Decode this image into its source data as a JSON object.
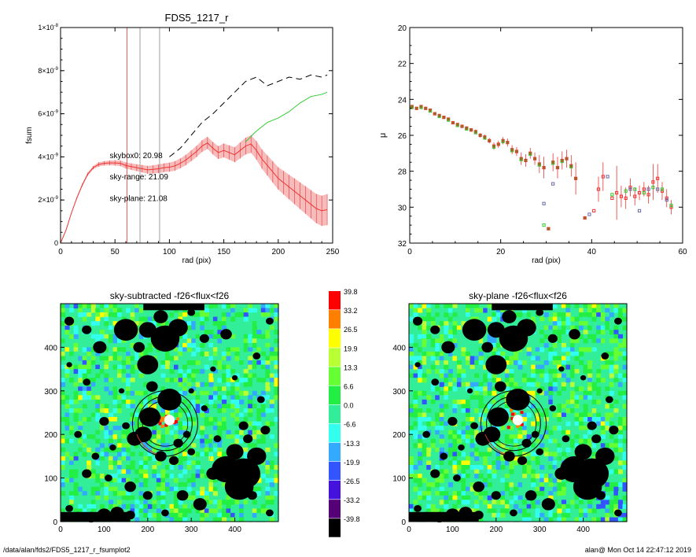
{
  "colors": {
    "red": "#ee3333",
    "green": "#33cc33",
    "black": "#000000",
    "gray": "#888888",
    "band": "#f5b5b5"
  },
  "footer": {
    "path": "/data/alan/fds2/FDS5_1217_r_fsumplot2",
    "user": "alan@  Mon Oct 14 22:47:12 2019"
  },
  "chart_data": [
    {
      "type": "line",
      "title": "FDS5_1217_r",
      "xlabel": "rad (pix)",
      "ylabel": "fsum",
      "xlim": [
        0,
        250
      ],
      "ylim": [
        0,
        1e-08
      ],
      "x_ticks": [
        0,
        50,
        100,
        150,
        200,
        250
      ],
      "x_tick_labels": [
        "0",
        "50",
        "100",
        "150",
        "200",
        "250"
      ],
      "y_ticks": [
        0,
        2e-09,
        4e-09,
        6e-09,
        8e-09,
        1e-08
      ],
      "y_tick_labels": [
        [
          "0",
          ""
        ],
        [
          "2×10",
          "-9"
        ],
        [
          "4×10",
          "-9"
        ],
        [
          "6×10",
          "-9"
        ],
        [
          "8×10",
          "-9"
        ],
        [
          "1×10",
          "-8"
        ]
      ],
      "vlines": [
        {
          "x": 61,
          "color": "red"
        },
        {
          "x": 73,
          "color": "gray"
        },
        {
          "x": 91,
          "color": "gray"
        }
      ],
      "annotations": [
        {
          "text": "skybox0: 20.98",
          "color": "black",
          "x": 35,
          "y": 3.95e-09
        },
        {
          "text": "sky-range: 21.09",
          "color": "red",
          "x": 35,
          "y": 2.95e-09
        },
        {
          "text": "sky-plane: 21.08",
          "color": "green",
          "x": 35,
          "y": 1.95e-09
        }
      ],
      "series": [
        {
          "style": "dashed",
          "color": "black",
          "x": [
            100,
            110,
            120,
            130,
            140,
            150,
            160,
            170,
            180,
            190,
            200,
            210,
            220,
            230,
            240,
            245
          ],
          "y": [
            4e-09,
            4.4e-09,
            5e-09,
            5.6e-09,
            6e-09,
            6.5e-09,
            7e-09,
            7.5e-09,
            7.7e-09,
            7.3e-09,
            7.5e-09,
            7.7e-09,
            7.6e-09,
            7.8e-09,
            7.7e-09,
            7.8e-09
          ]
        },
        {
          "style": "solid",
          "color": "green",
          "x": [
            170,
            180,
            190,
            200,
            210,
            220,
            230,
            240,
            245
          ],
          "y": [
            4.7e-09,
            5.2e-09,
            5.6e-09,
            5.8e-09,
            6.1e-09,
            6.5e-09,
            6.8e-09,
            6.9e-09,
            7e-09
          ]
        },
        {
          "style": "solid",
          "color": "red",
          "x": [
            0,
            5,
            10,
            15,
            20,
            25,
            30,
            35,
            40,
            45,
            50,
            55,
            60,
            65,
            70,
            75,
            80,
            85,
            90,
            95,
            100,
            105,
            110,
            115,
            120,
            125,
            130,
            135,
            140,
            145,
            150,
            155,
            160,
            165,
            170,
            175,
            180,
            185,
            190,
            195,
            200,
            205,
            210,
            215,
            220,
            225,
            230,
            235,
            240,
            245
          ],
          "y": [
            0,
            6e-10,
            1.4e-09,
            2.1e-09,
            2.7e-09,
            3.2e-09,
            3.5e-09,
            3.65e-09,
            3.7e-09,
            3.72e-09,
            3.72e-09,
            3.7e-09,
            3.6e-09,
            3.55e-09,
            3.5e-09,
            3.45e-09,
            3.4e-09,
            3.42e-09,
            3.45e-09,
            3.5e-09,
            3.52e-09,
            3.58e-09,
            3.7e-09,
            3.85e-09,
            4.05e-09,
            4.25e-09,
            4.5e-09,
            4.65e-09,
            4.4e-09,
            4.2e-09,
            4.3e-09,
            4.2e-09,
            4.1e-09,
            4.3e-09,
            4.5e-09,
            4.6e-09,
            4.3e-09,
            3.9e-09,
            3.6e-09,
            3.3e-09,
            3e-09,
            2.8e-09,
            2.6e-09,
            2.4e-09,
            2.2e-09,
            2e-09,
            1.8e-09,
            1.6e-09,
            1.5e-09,
            1.55e-09
          ],
          "err": [
            0,
            2e-11,
            3e-11,
            5e-11,
            6e-11,
            7e-11,
            8e-11,
            1e-10,
            1e-10,
            1.1e-10,
            1.2e-10,
            1.3e-10,
            1.4e-10,
            1.5e-10,
            1.6e-10,
            1.7e-10,
            1.8e-10,
            1.9e-10,
            2e-10,
            2e-10,
            2.1e-10,
            2.2e-10,
            2.3e-10,
            2.4e-10,
            2.5e-10,
            2.6e-10,
            2.7e-10,
            2.8e-10,
            2.9e-10,
            3e-10,
            3.2e-10,
            3.3e-10,
            3.5e-10,
            3.7e-10,
            3.9e-10,
            4.1e-10,
            4.3e-10,
            4.5e-10,
            4.7e-10,
            5e-10,
            5.2e-10,
            5.5e-10,
            5.7e-10,
            6e-10,
            6.2e-10,
            6.4e-10,
            6.6e-10,
            6.8e-10,
            7e-10,
            7.2e-10
          ]
        }
      ]
    },
    {
      "type": "scatter",
      "title": "",
      "xlabel": "rad (pix)",
      "ylabel": "μ",
      "xlim": [
        0,
        60
      ],
      "ylim": [
        32,
        20
      ],
      "x_ticks": [
        0,
        20,
        40,
        60
      ],
      "y_ticks": [
        20,
        22,
        24,
        26,
        28,
        30,
        32
      ],
      "series": [
        {
          "color": "red",
          "x": [
            0.5,
            1.5,
            2.5,
            3.5,
            4.5,
            5.5,
            6.5,
            7.5,
            8.5,
            9.5,
            10.5,
            11.5,
            12.5,
            13.5,
            14.5,
            15.5,
            16.5,
            17.5,
            18.5,
            19.5,
            20.5,
            21.5,
            22.5,
            23.5,
            24.5,
            25.5,
            26.5,
            27.5,
            28.5,
            29.5,
            30.5,
            31.5,
            32.5,
            33.5,
            34.5,
            35.5,
            36.5,
            38.5,
            40.5,
            41.5,
            42.5,
            44.5,
            45.5,
            46.5,
            47.5,
            48.5,
            49.5,
            50.5,
            51.5,
            52.5,
            53.5,
            54.5,
            55.5,
            56.5,
            57.5
          ],
          "y": [
            24.4,
            24.5,
            24.4,
            24.5,
            24.6,
            24.8,
            24.9,
            25.0,
            25.1,
            25.3,
            25.4,
            25.5,
            25.6,
            25.7,
            25.8,
            26.0,
            26.1,
            26.3,
            26.6,
            26.5,
            26.3,
            26.4,
            26.8,
            26.9,
            27.3,
            27.4,
            27.0,
            27.3,
            27.6,
            27.8,
            31.2,
            27.5,
            27.8,
            27.4,
            27.3,
            27.7,
            28.4,
            30.6,
            30.2,
            29.0,
            28.3,
            29.5,
            29.2,
            29.4,
            29.5,
            28.9,
            29.4,
            29.2,
            29.0,
            29.3,
            28.6,
            28.4,
            29.1,
            29.5,
            30.0
          ],
          "err": [
            0.05,
            0.05,
            0.05,
            0.05,
            0.05,
            0.06,
            0.06,
            0.07,
            0.07,
            0.08,
            0.08,
            0.09,
            0.1,
            0.1,
            0.12,
            0.12,
            0.14,
            0.15,
            0.2,
            0.2,
            0.2,
            0.22,
            0.25,
            0.25,
            0.35,
            0.35,
            0.3,
            0.35,
            0.5,
            0.6,
            0,
            0.5,
            0.6,
            0.5,
            0.5,
            0.6,
            0.9,
            0,
            0,
            0.7,
            0.8,
            0,
            1.5,
            0.6,
            0.6,
            0.5,
            0.5,
            0.4,
            0.4,
            0.5,
            1.0,
            0.8,
            0.5,
            0.5,
            0.4
          ]
        },
        {
          "color": "green",
          "x": [
            0.5,
            2.5,
            4.5,
            6.5,
            8.5,
            10.5,
            12.5,
            14.5,
            16.5,
            18.5,
            20.5,
            22.5,
            24.5,
            26.5,
            28.5,
            29.5,
            31.5,
            33.5,
            35.5,
            44.5,
            47.5,
            49.5,
            51.5,
            53.5,
            55.5,
            57.5
          ],
          "y": [
            24.45,
            24.45,
            24.65,
            24.95,
            25.15,
            25.45,
            25.65,
            25.85,
            26.15,
            26.65,
            26.35,
            26.85,
            27.35,
            27.05,
            27.65,
            31.0,
            27.55,
            27.45,
            27.75,
            29.3,
            29.1,
            29.0,
            29.2,
            28.9,
            29.0,
            29.9
          ]
        },
        {
          "color": "#6a6aaa",
          "x": [
            29.5,
            31.5,
            39.5,
            43.5,
            48.5,
            50.5,
            52.5,
            54.5,
            56.5
          ],
          "y": [
            29.8,
            28.7,
            30.4,
            28.3,
            29.0,
            30.2,
            29.0,
            29.0,
            29.6
          ]
        }
      ]
    },
    {
      "type": "heatmap",
      "title": "sky-subtracted -f26<flux<f26",
      "xlim": [
        0,
        500
      ],
      "ylim": [
        0,
        500
      ],
      "x_ticks": [
        0,
        100,
        200,
        300,
        400
      ],
      "y_ticks": [
        0,
        100,
        200,
        300,
        400
      ],
      "colorbar": {
        "labels": [
          "39.8",
          "33.2",
          "26.5",
          "19.9",
          "13.3",
          "6.6",
          "0.0",
          "-6.6",
          "-13.3",
          "-19.9",
          "-26.5",
          "-33.2",
          "-39.8"
        ],
        "colors": [
          "#ff0000",
          "#ff7f00",
          "#ffff00",
          "#b8ff33",
          "#66ff33",
          "#22ee44",
          "#33ee99",
          "#33ffee",
          "#33aaff",
          "#3355ff",
          "#4411dd",
          "#550077",
          "#000000"
        ]
      }
    },
    {
      "type": "heatmap",
      "title": "sky-plane -f26<flux<f26",
      "xlim": [
        0,
        500
      ],
      "ylim": [
        0,
        500
      ],
      "x_ticks": [
        0,
        100,
        200,
        300,
        400
      ],
      "y_ticks": [
        0,
        100,
        200,
        300,
        400
      ]
    }
  ]
}
